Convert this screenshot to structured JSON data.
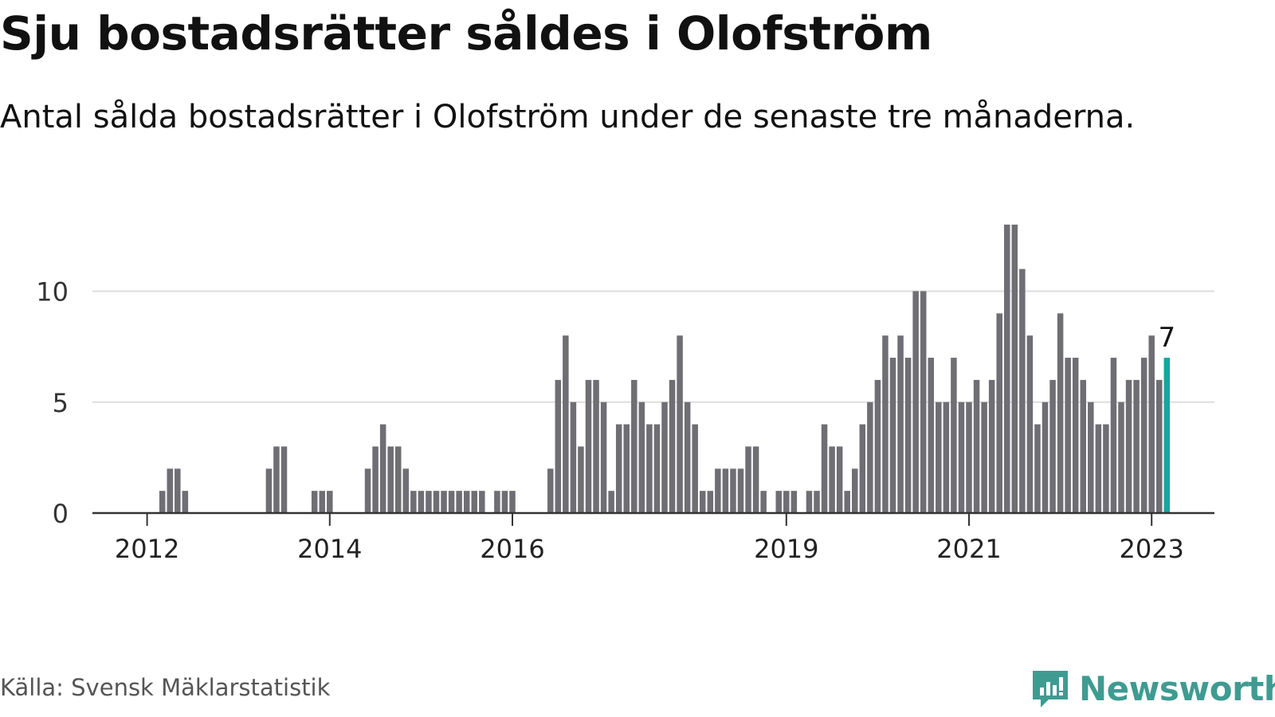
{
  "header": {
    "title": "Sju bostadsrätter såldes i Olofström",
    "subtitle": "Antal sålda bostadsrätter i Olofström under de senaste tre månaderna."
  },
  "chart_data": {
    "type": "bar",
    "start": "2012-01",
    "values": [
      0,
      0,
      1,
      2,
      2,
      1,
      0,
      0,
      0,
      0,
      0,
      0,
      0,
      0,
      0,
      0,
      2,
      3,
      3,
      0,
      0,
      0,
      1,
      1,
      1,
      0,
      0,
      0,
      0,
      2,
      3,
      4,
      3,
      3,
      2,
      1,
      1,
      1,
      1,
      1,
      1,
      1,
      1,
      1,
      1,
      0,
      1,
      1,
      1,
      0,
      0,
      0,
      0,
      2,
      6,
      8,
      5,
      3,
      6,
      6,
      5,
      1,
      4,
      4,
      6,
      5,
      4,
      4,
      5,
      6,
      8,
      5,
      4,
      1,
      1,
      2,
      2,
      2,
      2,
      3,
      3,
      1,
      0,
      1,
      1,
      1,
      0,
      1,
      1,
      4,
      3,
      3,
      1,
      2,
      4,
      5,
      6,
      8,
      7,
      8,
      7,
      10,
      10,
      7,
      5,
      5,
      7,
      5,
      5,
      6,
      5,
      6,
      9,
      13,
      13,
      11,
      8,
      4,
      5,
      6,
      9,
      7,
      7,
      6,
      5,
      4,
      4,
      7,
      5,
      6,
      6,
      7,
      8,
      6,
      7
    ],
    "x_ticks": [
      "2012",
      "2014",
      "2016",
      "2019",
      "2021",
      "2023"
    ],
    "y_ticks": [
      "0",
      "5",
      "10"
    ],
    "ylim": [
      0,
      13
    ],
    "highlight_label": "7",
    "grid": true
  },
  "colors": {
    "bar": "#6e6e74",
    "highlight": "#13a89e",
    "grid": "#dddddd",
    "axis": "#333333",
    "brand": "#3f9b91"
  },
  "footer": {
    "source": "Källa: Svensk Mäklarstatistik",
    "logo_text": "Newsworthy",
    "logo_icon": "newsworthy-chat-bars-icon"
  }
}
